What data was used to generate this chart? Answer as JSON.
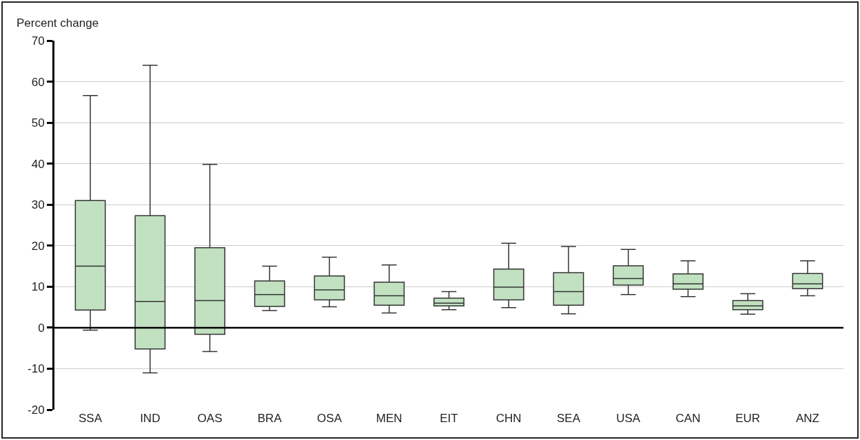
{
  "chart_data": {
    "type": "box",
    "ylabel": "Percent change",
    "categories": [
      "SSA",
      "IND",
      "OAS",
      "BRA",
      "OSA",
      "MEN",
      "EIT",
      "CHN",
      "SEA",
      "USA",
      "CAN",
      "EUR",
      "ANZ"
    ],
    "boxes": [
      {
        "low": -0.6,
        "q1": 4.3,
        "median": 15,
        "q3": 31,
        "high": 56.6
      },
      {
        "low": -11,
        "q1": -5.2,
        "median": 6.4,
        "q3": 27.3,
        "high": 64
      },
      {
        "low": -5.8,
        "q1": -1.6,
        "median": 6.6,
        "q3": 19.5,
        "high": 39.8
      },
      {
        "low": 4.2,
        "q1": 5.2,
        "median": 8.1,
        "q3": 11.4,
        "high": 15
      },
      {
        "low": 5.1,
        "q1": 6.8,
        "median": 9.2,
        "q3": 12.6,
        "high": 17.2
      },
      {
        "low": 3.6,
        "q1": 5.5,
        "median": 7.8,
        "q3": 11.1,
        "high": 15.3
      },
      {
        "low": 4.4,
        "q1": 5.3,
        "median": 6,
        "q3": 7.2,
        "high": 8.8
      },
      {
        "low": 4.9,
        "q1": 6.8,
        "median": 9.9,
        "q3": 14.3,
        "high": 20.6
      },
      {
        "low": 3.4,
        "q1": 5.5,
        "median": 8.8,
        "q3": 13.4,
        "high": 19.8
      },
      {
        "low": 8.1,
        "q1": 10.4,
        "median": 12,
        "q3": 15.1,
        "high": 19.1
      },
      {
        "low": 7.6,
        "q1": 9.4,
        "median": 10.7,
        "q3": 13.1,
        "high": 16.3
      },
      {
        "low": 3.3,
        "q1": 4.4,
        "median": 5.3,
        "q3": 6.6,
        "high": 8.3
      },
      {
        "low": 7.8,
        "q1": 9.5,
        "median": 10.7,
        "q3": 13.2,
        "high": 16.3
      }
    ],
    "color": "#c1e1c1",
    "ylim": [
      -20,
      70
    ],
    "yticks": [
      -20,
      -10,
      0,
      10,
      20,
      30,
      40,
      50,
      60,
      70
    ],
    "ref_lines": [
      {
        "axis": "y",
        "value": 0,
        "color": "#000000"
      }
    ],
    "grid": "y"
  }
}
